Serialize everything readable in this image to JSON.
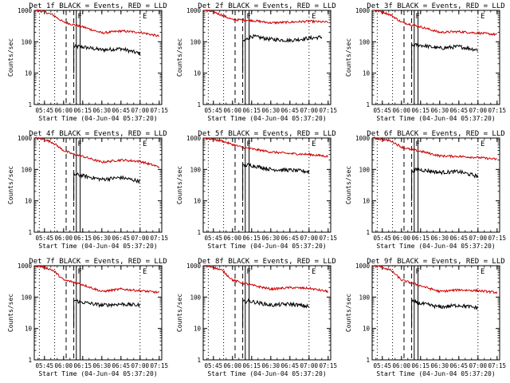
{
  "chart_data": [
    {
      "type": "line",
      "title": "Det 1f BLACK = Events, RED = LLD",
      "xlabel": "Start Time (04-Jun-04 05:37:20)",
      "ylabel": "Counts/sec",
      "y_scale": "log",
      "ylim": [
        1,
        1000
      ],
      "xlim": [
        "05:37",
        "07:17"
      ],
      "x_tick_labels": [
        "05:45",
        "06:00",
        "06:15",
        "06:30",
        "06:45",
        "07:00",
        "07:15"
      ],
      "y_tick_labels": [
        "1",
        "10",
        "100",
        "1000"
      ],
      "markers": {
        "vertical_dotted": [
          "05:41",
          "05:53",
          "07:00"
        ],
        "vertical_dashed": [
          "06:02",
          "06:08"
        ],
        "vertical_solid": [
          "06:10",
          "06:13"
        ],
        "labels": [
          {
            "text": "F",
            "at": "06:11"
          },
          {
            "text": "E",
            "at": "07:02"
          }
        ]
      },
      "series": [
        {
          "color": "#000000",
          "x": [
            "06:08",
            "06:13",
            "06:30",
            "06:45",
            "07:00"
          ],
          "values": [
            70,
            70,
            55,
            60,
            42
          ]
        },
        {
          "color": "#cc0000",
          "x": [
            "05:38",
            "05:45",
            "05:52",
            "06:00",
            "06:08",
            "06:15",
            "06:30",
            "06:45",
            "07:00",
            "07:15"
          ],
          "values": [
            1000,
            900,
            700,
            420,
            350,
            300,
            190,
            220,
            200,
            150
          ]
        }
      ],
      "grid": false,
      "legend": "none"
    },
    {
      "type": "line",
      "title": "Det 2f BLACK = Events, RED = LLD",
      "xlabel": "Start Time (04-Jun-04 05:37:20)",
      "ylabel": "Counts/sec",
      "y_scale": "log",
      "ylim": [
        1,
        1000
      ],
      "xlim": [
        "05:37",
        "07:17"
      ],
      "x_tick_labels": [
        "05:45",
        "06:00",
        "06:15",
        "06:30",
        "06:45",
        "07:00",
        "07:15"
      ],
      "y_tick_labels": [
        "1",
        "10",
        "100",
        "1000"
      ],
      "markers": {
        "vertical_dotted": [
          "05:41",
          "05:53",
          "07:00"
        ],
        "vertical_dashed": [
          "06:02",
          "06:08"
        ],
        "vertical_solid": [
          "06:10",
          "06:13"
        ],
        "labels": [
          {
            "text": "F",
            "at": "06:11"
          },
          {
            "text": "E",
            "at": "07:02"
          }
        ]
      },
      "series": [
        {
          "color": "#000000",
          "x": [
            "06:08",
            "06:15",
            "06:30",
            "06:45",
            "07:00",
            "07:10"
          ],
          "values": [
            100,
            150,
            120,
            110,
            130,
            140
          ]
        },
        {
          "color": "#cc0000",
          "x": [
            "05:38",
            "05:45",
            "05:52",
            "06:00",
            "06:08",
            "06:15",
            "06:30",
            "06:45",
            "07:00",
            "07:15"
          ],
          "values": [
            1000,
            900,
            700,
            500,
            500,
            480,
            400,
            420,
            450,
            420
          ]
        }
      ],
      "grid": false,
      "legend": "none"
    },
    {
      "type": "line",
      "title": "Det 3f BLACK = Events, RED = LLD",
      "xlabel": "Start Time (04-Jun-04 05:37:20)",
      "ylabel": "Counts/sec",
      "y_scale": "log",
      "ylim": [
        1,
        1000
      ],
      "xlim": [
        "05:37",
        "07:17"
      ],
      "x_tick_labels": [
        "05:45",
        "06:00",
        "06:15",
        "06:30",
        "06:45",
        "07:00",
        "07:15"
      ],
      "y_tick_labels": [
        "1",
        "10",
        "100",
        "1000"
      ],
      "markers": {
        "vertical_dotted": [
          "05:41",
          "05:53",
          "07:00"
        ],
        "vertical_dashed": [
          "06:02",
          "06:08"
        ],
        "vertical_solid": [
          "06:10",
          "06:13"
        ],
        "labels": [
          {
            "text": "F",
            "at": "06:11"
          },
          {
            "text": "E",
            "at": "07:02"
          }
        ]
      },
      "series": [
        {
          "color": "#000000",
          "x": [
            "06:08",
            "06:13",
            "06:30",
            "06:45",
            "07:00"
          ],
          "values": [
            75,
            80,
            62,
            70,
            55
          ]
        },
        {
          "color": "#cc0000",
          "x": [
            "05:38",
            "05:45",
            "05:52",
            "06:00",
            "06:08",
            "06:15",
            "06:30",
            "06:45",
            "07:00",
            "07:15"
          ],
          "values": [
            1000,
            900,
            700,
            420,
            350,
            300,
            200,
            210,
            190,
            170
          ]
        }
      ],
      "grid": false,
      "legend": "none"
    },
    {
      "type": "line",
      "title": "Det 4f BLACK = Events, RED = LLD",
      "xlabel": "Start Time (04-Jun-04 05:37:20)",
      "ylabel": "Counts/sec",
      "y_scale": "log",
      "ylim": [
        1,
        1000
      ],
      "xlim": [
        "05:37",
        "07:17"
      ],
      "x_tick_labels": [
        "05:45",
        "06:00",
        "06:15",
        "06:30",
        "06:45",
        "07:00",
        "07:15"
      ],
      "y_tick_labels": [
        "1",
        "10",
        "100",
        "1000"
      ],
      "markers": {
        "vertical_dotted": [
          "05:41",
          "05:53",
          "07:00"
        ],
        "vertical_dashed": [
          "06:02",
          "06:08"
        ],
        "vertical_solid": [
          "06:10",
          "06:13"
        ],
        "labels": [
          {
            "text": "F",
            "at": "06:11"
          },
          {
            "text": "E",
            "at": "07:02"
          }
        ]
      },
      "series": [
        {
          "color": "#000000",
          "x": [
            "06:08",
            "06:13",
            "06:30",
            "06:45",
            "07:00"
          ],
          "values": [
            70,
            65,
            48,
            55,
            42
          ]
        },
        {
          "color": "#cc0000",
          "x": [
            "05:38",
            "05:45",
            "05:52",
            "06:00",
            "06:08",
            "06:15",
            "06:30",
            "06:45",
            "07:00",
            "07:15"
          ],
          "values": [
            1000,
            900,
            700,
            400,
            300,
            260,
            170,
            200,
            180,
            120
          ]
        }
      ],
      "grid": false,
      "legend": "none"
    },
    {
      "type": "line",
      "title": "Det 5f BLACK = Events, RED = LLD",
      "xlabel": "Start Time (04-Jun-04 05:37:20)",
      "ylabel": "Counts/sec",
      "y_scale": "log",
      "ylim": [
        1,
        1000
      ],
      "xlim": [
        "05:37",
        "07:17"
      ],
      "x_tick_labels": [
        "05:45",
        "06:00",
        "06:15",
        "06:30",
        "06:45",
        "07:00",
        "07:15"
      ],
      "y_tick_labels": [
        "1",
        "10",
        "100",
        "1000"
      ],
      "markers": {
        "vertical_dotted": [
          "05:41",
          "05:53",
          "07:00"
        ],
        "vertical_dashed": [
          "06:02",
          "06:08"
        ],
        "vertical_solid": [
          "06:10",
          "06:13"
        ],
        "labels": [
          {
            "text": "F",
            "at": "06:11"
          },
          {
            "text": "E",
            "at": "07:02"
          }
        ]
      },
      "series": [
        {
          "color": "#000000",
          "x": [
            "06:08",
            "06:13",
            "06:30",
            "06:45",
            "07:00"
          ],
          "values": [
            130,
            140,
            100,
            95,
            85
          ]
        },
        {
          "color": "#cc0000",
          "x": [
            "05:38",
            "05:45",
            "05:52",
            "06:00",
            "06:08",
            "06:15",
            "06:30",
            "06:45",
            "07:00",
            "07:15"
          ],
          "values": [
            1000,
            900,
            800,
            620,
            500,
            450,
            360,
            320,
            300,
            260
          ]
        }
      ],
      "grid": false,
      "legend": "none"
    },
    {
      "type": "line",
      "title": "Det 6f BLACK = Events, RED = LLD",
      "xlabel": "Start Time (04-Jun-04 05:37:20)",
      "ylabel": "Counts/sec",
      "y_scale": "log",
      "ylim": [
        1,
        1000
      ],
      "xlim": [
        "05:37",
        "07:17"
      ],
      "x_tick_labels": [
        "05:45",
        "06:00",
        "06:15",
        "06:30",
        "06:45",
        "07:00",
        "07:15"
      ],
      "y_tick_labels": [
        "1",
        "10",
        "100",
        "1000"
      ],
      "markers": {
        "vertical_dotted": [
          "05:41",
          "05:53",
          "07:00"
        ],
        "vertical_dashed": [
          "06:02",
          "06:08"
        ],
        "vertical_solid": [
          "06:10",
          "06:13"
        ],
        "labels": [
          {
            "text": "F",
            "at": "06:11"
          },
          {
            "text": "E",
            "at": "07:02"
          }
        ]
      },
      "series": [
        {
          "color": "#000000",
          "x": [
            "06:08",
            "06:13",
            "06:30",
            "06:45",
            "07:00"
          ],
          "values": [
            90,
            100,
            80,
            85,
            60
          ]
        },
        {
          "color": "#cc0000",
          "x": [
            "05:38",
            "05:45",
            "05:52",
            "06:00",
            "06:08",
            "06:15",
            "06:30",
            "06:45",
            "07:00",
            "07:15"
          ],
          "values": [
            1000,
            900,
            800,
            520,
            420,
            380,
            270,
            260,
            240,
            210
          ]
        }
      ],
      "grid": false,
      "legend": "none"
    },
    {
      "type": "line",
      "title": "Det 7f BLACK = Events, RED = LLD",
      "xlabel": "Start Time (04-Jun-04 05:37:20)",
      "ylabel": "Counts/sec",
      "y_scale": "log",
      "ylim": [
        1,
        1000
      ],
      "xlim": [
        "05:37",
        "07:17"
      ],
      "x_tick_labels": [
        "05:45",
        "06:00",
        "06:15",
        "06:30",
        "06:45",
        "07:00",
        "07:15"
      ],
      "y_tick_labels": [
        "1",
        "10",
        "100",
        "1000"
      ],
      "markers": {
        "vertical_dotted": [
          "05:41",
          "05:53",
          "07:00"
        ],
        "vertical_dashed": [
          "06:02",
          "06:08"
        ],
        "vertical_solid": [
          "06:10",
          "06:13"
        ],
        "labels": [
          {
            "text": "F",
            "at": "06:11"
          },
          {
            "text": "E",
            "at": "07:02"
          }
        ]
      },
      "series": [
        {
          "color": "#000000",
          "x": [
            "06:08",
            "06:13",
            "06:30",
            "06:45",
            "07:00"
          ],
          "values": [
            80,
            70,
            55,
            60,
            55
          ]
        },
        {
          "color": "#cc0000",
          "x": [
            "05:38",
            "05:45",
            "05:52",
            "06:00",
            "06:08",
            "06:15",
            "06:30",
            "06:45",
            "07:00",
            "07:15"
          ],
          "values": [
            1000,
            900,
            700,
            350,
            300,
            250,
            150,
            180,
            160,
            140
          ]
        }
      ],
      "grid": false,
      "legend": "none"
    },
    {
      "type": "line",
      "title": "Det 8f BLACK = Events, RED = LLD",
      "xlabel": "Start Time (04-Jun-04 05:37:20)",
      "ylabel": "Counts/sec",
      "y_scale": "log",
      "ylim": [
        1,
        1000
      ],
      "xlim": [
        "05:37",
        "07:17"
      ],
      "x_tick_labels": [
        "05:45",
        "06:00",
        "06:15",
        "06:30",
        "06:45",
        "07:00",
        "07:15"
      ],
      "y_tick_labels": [
        "1",
        "10",
        "100",
        "1000"
      ],
      "markers": {
        "vertical_dotted": [
          "05:41",
          "05:53",
          "07:00"
        ],
        "vertical_dashed": [
          "06:02",
          "06:08"
        ],
        "vertical_solid": [
          "06:10",
          "06:13"
        ],
        "labels": [
          {
            "text": "F",
            "at": "06:11"
          },
          {
            "text": "E",
            "at": "07:02"
          }
        ]
      },
      "series": [
        {
          "color": "#000000",
          "x": [
            "06:08",
            "06:13",
            "06:30",
            "06:45",
            "07:00"
          ],
          "values": [
            70,
            75,
            55,
            60,
            50
          ]
        },
        {
          "color": "#cc0000",
          "x": [
            "05:38",
            "05:45",
            "05:52",
            "06:00",
            "06:08",
            "06:15",
            "06:30",
            "06:45",
            "07:00",
            "07:15"
          ],
          "values": [
            1000,
            900,
            700,
            350,
            280,
            240,
            180,
            200,
            190,
            150
          ]
        }
      ],
      "grid": false,
      "legend": "none"
    },
    {
      "type": "line",
      "title": "Det 9f BLACK = Events, RED = LLD",
      "xlabel": "Start Time (04-Jun-04 05:37:20)",
      "ylabel": "Counts/sec",
      "y_scale": "log",
      "ylim": [
        1,
        1000
      ],
      "xlim": [
        "05:37",
        "07:17"
      ],
      "x_tick_labels": [
        "05:45",
        "06:00",
        "06:15",
        "06:30",
        "06:45",
        "07:00",
        "07:15"
      ],
      "y_tick_labels": [
        "1",
        "10",
        "100",
        "1000"
      ],
      "markers": {
        "vertical_dotted": [
          "05:41",
          "05:53",
          "07:00"
        ],
        "vertical_dashed": [
          "06:02",
          "06:08"
        ],
        "vertical_solid": [
          "06:10",
          "06:13"
        ],
        "labels": [
          {
            "text": "F",
            "at": "06:11"
          },
          {
            "text": "E",
            "at": "07:02"
          }
        ]
      },
      "series": [
        {
          "color": "#000000",
          "x": [
            "06:08",
            "06:13",
            "06:30",
            "06:45",
            "07:00"
          ],
          "values": [
            75,
            65,
            48,
            55,
            45
          ]
        },
        {
          "color": "#cc0000",
          "x": [
            "05:38",
            "05:45",
            "05:52",
            "06:00",
            "06:08",
            "06:15",
            "06:30",
            "06:45",
            "07:00",
            "07:15"
          ],
          "values": [
            1000,
            900,
            700,
            350,
            280,
            230,
            150,
            170,
            160,
            140
          ]
        }
      ],
      "grid": false,
      "legend": "none"
    }
  ]
}
